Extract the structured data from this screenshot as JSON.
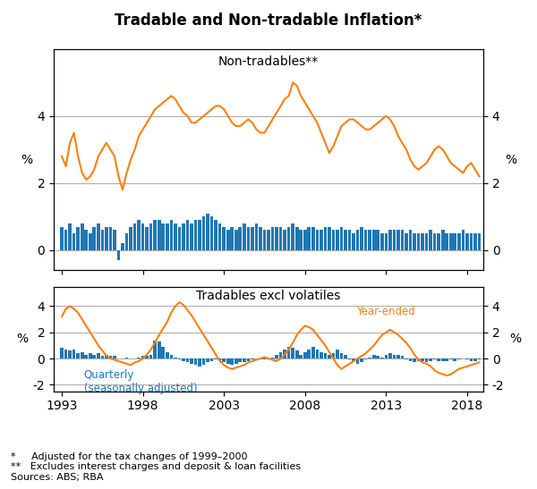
{
  "title": "Tradable and Non-tradable Inflation*",
  "footnotes": [
    "*     Adjusted for the tax changes of 1999–2000",
    "**   Excludes interest charges and deposit & loan facilities",
    "Sources: ABS; RBA"
  ],
  "chart_data": [
    {
      "type": "bar",
      "title": "Non-tradables**",
      "x": [
        1993,
        1993.25,
        1993.5,
        1993.75,
        1994,
        1994.25,
        1994.5,
        1994.75,
        1995,
        1995.25,
        1995.5,
        1995.75,
        1996,
        1996.25,
        1996.5,
        1996.75,
        1997,
        1997.25,
        1997.5,
        1997.75,
        1998,
        1998.25,
        1998.5,
        1998.75,
        1999,
        1999.25,
        1999.5,
        1999.75,
        2000,
        2000.25,
        2000.5,
        2000.75,
        2001,
        2001.25,
        2001.5,
        2001.75,
        2002,
        2002.25,
        2002.5,
        2002.75,
        2003,
        2003.25,
        2003.5,
        2003.75,
        2004,
        2004.25,
        2004.5,
        2004.75,
        2005,
        2005.25,
        2005.5,
        2005.75,
        2006,
        2006.25,
        2006.5,
        2006.75,
        2007,
        2007.25,
        2007.5,
        2007.75,
        2008,
        2008.25,
        2008.5,
        2008.75,
        2009,
        2009.25,
        2009.5,
        2009.75,
        2010,
        2010.25,
        2010.5,
        2010.75,
        2011,
        2011.25,
        2011.5,
        2011.75,
        2012,
        2012.25,
        2012.5,
        2012.75,
        2013,
        2013.25,
        2013.5,
        2013.75,
        2014,
        2014.25,
        2014.5,
        2014.75,
        2015,
        2015.25,
        2015.5,
        2015.75,
        2016,
        2016.25,
        2016.5,
        2016.75,
        2017,
        2017.25,
        2017.5,
        2017.75,
        2018,
        2018.25,
        2018.5,
        2018.75
      ],
      "series": [
        {
          "type": "bar",
          "color": "#1f77b4",
          "values": [
            0.7,
            0.6,
            0.8,
            0.5,
            0.7,
            0.8,
            0.6,
            0.5,
            0.7,
            0.8,
            0.6,
            0.7,
            0.7,
            0.6,
            -0.3,
            0.2,
            0.5,
            0.7,
            0.8,
            0.9,
            0.8,
            0.7,
            0.8,
            0.9,
            0.9,
            0.8,
            0.8,
            0.9,
            0.8,
            0.7,
            0.8,
            0.9,
            0.8,
            0.9,
            0.9,
            1.0,
            1.1,
            1.0,
            0.9,
            0.8,
            0.7,
            0.6,
            0.7,
            0.6,
            0.7,
            0.8,
            0.7,
            0.7,
            0.8,
            0.7,
            0.6,
            0.6,
            0.7,
            0.7,
            0.7,
            0.6,
            0.7,
            0.8,
            0.7,
            0.6,
            0.6,
            0.7,
            0.7,
            0.6,
            0.6,
            0.7,
            0.7,
            0.6,
            0.6,
            0.7,
            0.6,
            0.6,
            0.5,
            0.6,
            0.7,
            0.6,
            0.6,
            0.6,
            0.6,
            0.5,
            0.5,
            0.6,
            0.6,
            0.6,
            0.6,
            0.5,
            0.6,
            0.5,
            0.5,
            0.5,
            0.5,
            0.6,
            0.5,
            0.5,
            0.6,
            0.5,
            0.5,
            0.5,
            0.5,
            0.6,
            0.5,
            0.5,
            0.5,
            0.5
          ]
        },
        {
          "type": "line",
          "color": "#ff7f0e",
          "values": [
            2.8,
            2.5,
            3.2,
            3.5,
            2.8,
            2.3,
            2.1,
            2.2,
            2.4,
            2.8,
            3.0,
            3.2,
            3.0,
            2.8,
            2.2,
            1.8,
            2.3,
            2.7,
            3.0,
            3.4,
            3.6,
            3.8,
            4.0,
            4.2,
            4.3,
            4.4,
            4.5,
            4.6,
            4.5,
            4.3,
            4.1,
            4.0,
            3.8,
            3.8,
            3.9,
            4.0,
            4.1,
            4.2,
            4.3,
            4.3,
            4.2,
            4.0,
            3.8,
            3.7,
            3.7,
            3.8,
            3.9,
            3.8,
            3.6,
            3.5,
            3.5,
            3.7,
            3.9,
            4.1,
            4.3,
            4.5,
            4.6,
            5.0,
            4.9,
            4.6,
            4.4,
            4.2,
            4.0,
            3.8,
            3.5,
            3.2,
            2.9,
            3.1,
            3.4,
            3.7,
            3.8,
            3.9,
            3.9,
            3.8,
            3.7,
            3.6,
            3.6,
            3.7,
            3.8,
            3.9,
            4.0,
            3.9,
            3.7,
            3.4,
            3.2,
            3.0,
            2.7,
            2.5,
            2.4,
            2.5,
            2.6,
            2.8,
            3.0,
            3.1,
            3.0,
            2.8,
            2.6,
            2.5,
            2.4,
            2.3,
            2.5,
            2.6,
            2.4,
            2.2
          ]
        }
      ],
      "xlim": [
        1992.5,
        2019.0
      ],
      "xticks": [
        1993,
        1998,
        2003,
        2008,
        2013,
        2018
      ],
      "ylim": [
        -0.6,
        6.0
      ],
      "yticks": [
        0,
        2,
        4
      ],
      "y2lim": [
        -0.6,
        6.0
      ],
      "y2ticks": [
        0,
        2,
        4
      ],
      "ylabel": "%",
      "y2label": "%",
      "grid": "y",
      "tick_labels": "y"
    },
    {
      "type": "bar",
      "title": "Tradables excl volatiles",
      "x": [
        1993,
        1993.25,
        1993.5,
        1993.75,
        1994,
        1994.25,
        1994.5,
        1994.75,
        1995,
        1995.25,
        1995.5,
        1995.75,
        1996,
        1996.25,
        1996.5,
        1996.75,
        1997,
        1997.25,
        1997.5,
        1997.75,
        1998,
        1998.25,
        1998.5,
        1998.75,
        1999,
        1999.25,
        1999.5,
        1999.75,
        2000,
        2000.25,
        2000.5,
        2000.75,
        2001,
        2001.25,
        2001.5,
        2001.75,
        2002,
        2002.25,
        2002.5,
        2002.75,
        2003,
        2003.25,
        2003.5,
        2003.75,
        2004,
        2004.25,
        2004.5,
        2004.75,
        2005,
        2005.25,
        2005.5,
        2005.75,
        2006,
        2006.25,
        2006.5,
        2006.75,
        2007,
        2007.25,
        2007.5,
        2007.75,
        2008,
        2008.25,
        2008.5,
        2008.75,
        2009,
        2009.25,
        2009.5,
        2009.75,
        2010,
        2010.25,
        2010.5,
        2010.75,
        2011,
        2011.25,
        2011.5,
        2011.75,
        2012,
        2012.25,
        2012.5,
        2012.75,
        2013,
        2013.25,
        2013.5,
        2013.75,
        2014,
        2014.25,
        2014.5,
        2014.75,
        2015,
        2015.25,
        2015.5,
        2015.75,
        2016,
        2016.25,
        2016.5,
        2016.75,
        2017,
        2017.25,
        2017.5,
        2017.75,
        2018,
        2018.25,
        2018.5,
        2018.75
      ],
      "series": [
        {
          "type": "bar",
          "color": "#1f77b4",
          "values": [
            0.8,
            0.7,
            0.6,
            0.7,
            0.4,
            0.5,
            0.3,
            0.4,
            0.3,
            0.4,
            0.2,
            0.3,
            0.2,
            0.2,
            0.0,
            0.0,
            0.1,
            0.0,
            0.0,
            0.1,
            0.2,
            0.2,
            0.3,
            1.4,
            1.3,
            0.9,
            0.5,
            0.3,
            0.1,
            -0.1,
            -0.2,
            -0.3,
            -0.4,
            -0.5,
            -0.6,
            -0.5,
            -0.3,
            -0.2,
            -0.1,
            -0.2,
            -0.3,
            -0.4,
            -0.5,
            -0.4,
            -0.3,
            -0.3,
            -0.2,
            -0.1,
            0.0,
            -0.1,
            -0.1,
            -0.1,
            0.1,
            0.3,
            0.5,
            0.7,
            0.9,
            0.8,
            0.6,
            0.3,
            0.5,
            0.7,
            0.9,
            0.7,
            0.5,
            0.4,
            0.3,
            0.4,
            0.7,
            0.4,
            0.3,
            -0.1,
            -0.2,
            -0.4,
            -0.3,
            -0.1,
            0.1,
            0.3,
            0.2,
            0.1,
            0.3,
            0.4,
            0.3,
            0.3,
            0.2,
            -0.1,
            -0.2,
            -0.3,
            -0.2,
            -0.2,
            -0.3,
            -0.2,
            -0.1,
            -0.2,
            -0.2,
            -0.2,
            -0.1,
            -0.2,
            -0.1,
            0.0,
            -0.1,
            -0.2,
            -0.2,
            -0.1
          ]
        },
        {
          "type": "line",
          "color": "#ff7f0e",
          "values": [
            3.2,
            3.8,
            4.0,
            3.8,
            3.5,
            3.0,
            2.5,
            2.0,
            1.5,
            1.0,
            0.6,
            0.2,
            0.0,
            -0.1,
            -0.2,
            -0.3,
            -0.4,
            -0.5,
            -0.3,
            -0.2,
            0.0,
            0.3,
            0.7,
            1.2,
            1.8,
            2.3,
            2.8,
            3.5,
            4.0,
            4.3,
            4.1,
            3.7,
            3.3,
            2.8,
            2.3,
            1.8,
            1.3,
            0.8,
            0.3,
            -0.2,
            -0.5,
            -0.7,
            -0.8,
            -0.7,
            -0.6,
            -0.5,
            -0.3,
            -0.2,
            -0.1,
            0.0,
            0.1,
            0.0,
            -0.1,
            -0.2,
            0.0,
            0.3,
            0.7,
            1.2,
            1.8,
            2.2,
            2.5,
            2.4,
            2.2,
            1.8,
            1.4,
            1.0,
            0.5,
            0.0,
            -0.5,
            -0.8,
            -0.6,
            -0.4,
            -0.2,
            0.0,
            0.2,
            0.4,
            0.7,
            1.0,
            1.4,
            1.8,
            2.0,
            2.2,
            2.0,
            1.8,
            1.5,
            1.2,
            0.8,
            0.3,
            -0.1,
            -0.3,
            -0.4,
            -0.6,
            -0.9,
            -1.1,
            -1.2,
            -1.3,
            -1.2,
            -1.0,
            -0.8,
            -0.7,
            -0.6,
            -0.5,
            -0.4,
            -0.3
          ]
        }
      ],
      "xlim": [
        1992.5,
        2019.0
      ],
      "xticks": [
        1993,
        1998,
        2003,
        2008,
        2013,
        2018
      ],
      "ylim": [
        -2.5,
        5.5
      ],
      "yticks": [
        -2,
        0,
        2,
        4
      ],
      "y2lim": [
        -2.5,
        5.5
      ],
      "y2ticks": [
        -2,
        0,
        2,
        4
      ],
      "ylabel": "%",
      "y2label": "%",
      "grid": "y",
      "annotations": [
        "Year-ended",
        "Quarterly\n(seasonally adjusted)"
      ]
    }
  ]
}
